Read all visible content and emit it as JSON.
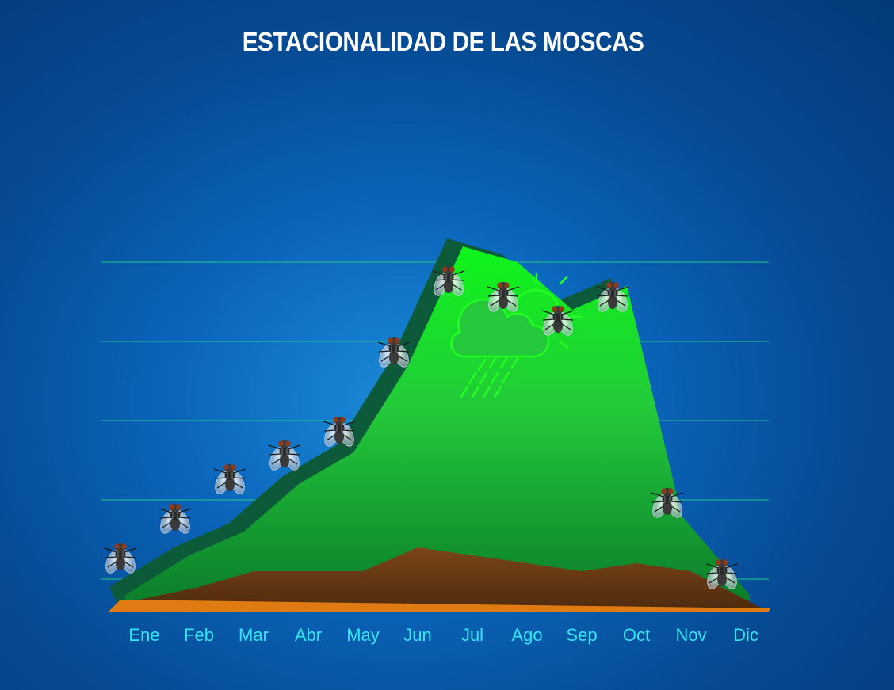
{
  "colors": {
    "gridline": "#1fc98a",
    "area_fill_top": "#0ff51a",
    "area_fill_bottom": "#0a7a2a",
    "area_shadow": "#0c5a3a",
    "ground": "#6a3a15",
    "base_strip": "#e07a12",
    "month_label": "#33e6f0",
    "weather_icon": "#22ff22"
  },
  "decorations": {
    "marker_icon": "fly-icon",
    "weather_icon": "sun-cloud-rain-icon"
  },
  "chart_data": {
    "type": "area",
    "title": "ESTACIONALIDAD DE LAS MOSCAS",
    "categories": [
      "Ene",
      "Feb",
      "Mar",
      "Abr",
      "May",
      "Jun",
      "Jul",
      "Ago",
      "Sep",
      "Oct",
      "Nov",
      "Dic"
    ],
    "series": [
      {
        "values": [
          0.3,
          0.8,
          1.1,
          1.7,
          2.1,
          3.2,
          4.7,
          4.5,
          3.9,
          4.2,
          1.3,
          0.3
        ]
      },
      {
        "values": [
          0.2,
          0.4,
          0.6,
          0.6,
          0.6,
          0.9,
          0.8,
          0.7,
          0.6,
          0.7,
          0.6,
          0.1
        ]
      }
    ],
    "fly_markers": [
      0.8,
      1.3,
      1.8,
      2.1,
      2.4,
      3.4,
      4.3,
      4.1,
      3.8,
      4.1,
      1.5,
      0.6
    ],
    "ylim": [
      0,
      5
    ],
    "y_gridlines": [
      0.5,
      1.5,
      2.5,
      3.5,
      4.5
    ],
    "grid": true
  }
}
